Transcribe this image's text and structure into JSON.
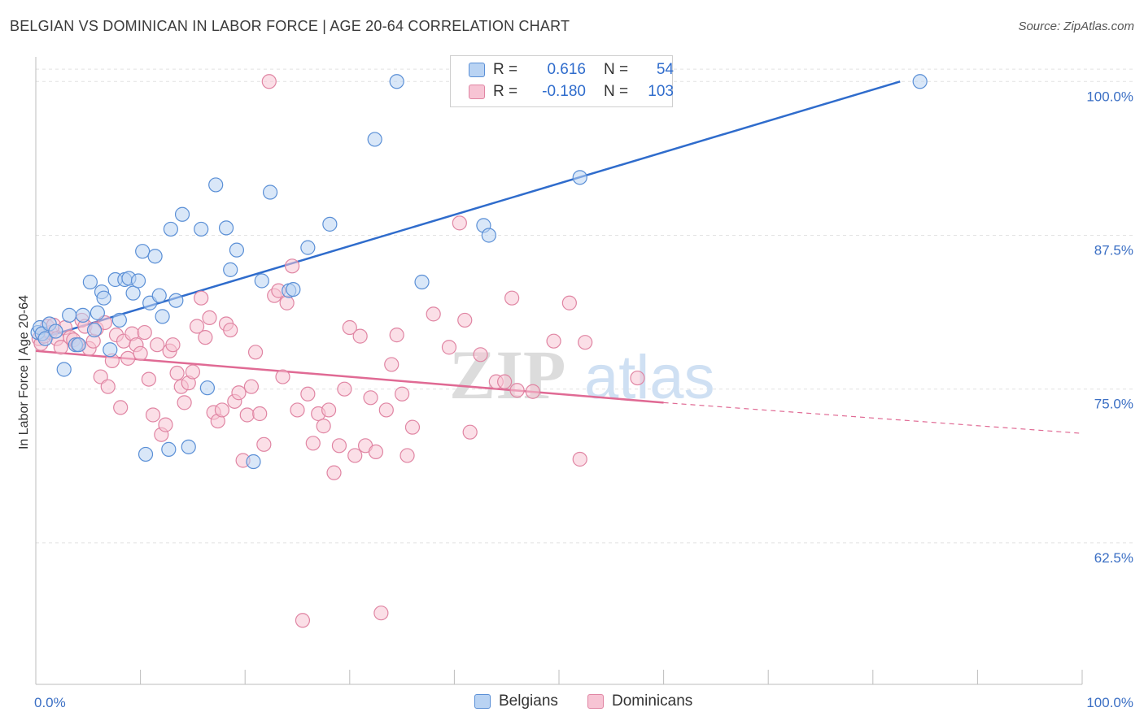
{
  "title": "BELGIAN VS DOMINICAN IN LABOR FORCE | AGE 20-64 CORRELATION CHART",
  "source": "Source: ZipAtlas.com",
  "legend": {
    "row1": {
      "r_label": "R =",
      "r_value": "0.616",
      "n_label": "N =",
      "n_value": "54"
    },
    "row2": {
      "r_label": "R =",
      "r_value": "-0.180",
      "n_label": "N =",
      "n_value": "103"
    }
  },
  "bottom_legend": {
    "belgians": "Belgians",
    "dominicans": "Dominicans"
  },
  "watermark": {
    "zip": "ZIP",
    "atlas": "atlas"
  },
  "colors": {
    "belgian": "#5a8fd6",
    "belgian_fill": "#b9d3f3",
    "dominican": "#e085a3",
    "dominican_fill": "#f7c4d4",
    "blue_line": "#2f6ccc",
    "pink_line": "#e06a94"
  },
  "chart_data": {
    "type": "scatter",
    "title": "BELGIAN VS DOMINICAN IN LABOR FORCE | AGE 20-64 CORRELATION CHART",
    "xlabel": "",
    "ylabel": "In Labor Force | Age 20-64",
    "xlim": [
      0,
      100
    ],
    "ylim": [
      51,
      102
    ],
    "x_tick_labels": [
      "0.0%",
      "100.0%"
    ],
    "y_ticks": [
      62.5,
      75.0,
      87.5,
      100.0
    ],
    "y_tick_labels": [
      "62.5%",
      "75.0%",
      "87.5%",
      "100.0%"
    ],
    "series": [
      {
        "name": "Belgians",
        "r": 0.616,
        "n": 54,
        "trend": {
          "x0": 0,
          "y0": 79.0,
          "x1": 82.6,
          "y1": 100.0
        },
        "points": [
          [
            0.2,
            79.6
          ],
          [
            0.4,
            80.0
          ],
          [
            0.6,
            79.5
          ],
          [
            0.9,
            79.1
          ],
          [
            1.3,
            80.3
          ],
          [
            1.9,
            79.7
          ],
          [
            2.7,
            76.6
          ],
          [
            3.2,
            81.0
          ],
          [
            3.8,
            78.6
          ],
          [
            4.1,
            78.6
          ],
          [
            4.5,
            81.0
          ],
          [
            5.2,
            83.7
          ],
          [
            5.6,
            79.8
          ],
          [
            5.9,
            81.2
          ],
          [
            6.3,
            82.9
          ],
          [
            6.5,
            82.4
          ],
          [
            7.1,
            78.2
          ],
          [
            7.6,
            83.9
          ],
          [
            8.0,
            80.6
          ],
          [
            8.5,
            83.9
          ],
          [
            8.9,
            84.0
          ],
          [
            9.3,
            82.8
          ],
          [
            9.8,
            83.8
          ],
          [
            10.2,
            86.2
          ],
          [
            10.9,
            82.0
          ],
          [
            11.4,
            85.8
          ],
          [
            11.8,
            82.6
          ],
          [
            12.1,
            80.9
          ],
          [
            12.9,
            88.0
          ],
          [
            13.4,
            82.2
          ],
          [
            14.0,
            89.2
          ],
          [
            14.6,
            70.3
          ],
          [
            15.8,
            88.0
          ],
          [
            16.4,
            75.1
          ],
          [
            17.2,
            91.6
          ],
          [
            18.2,
            88.1
          ],
          [
            18.6,
            84.7
          ],
          [
            19.2,
            86.3
          ],
          [
            20.8,
            69.1
          ],
          [
            21.6,
            83.8
          ],
          [
            22.4,
            91.0
          ],
          [
            24.2,
            83.0
          ],
          [
            24.6,
            83.1
          ],
          [
            26.0,
            86.5
          ],
          [
            28.1,
            88.4
          ],
          [
            32.4,
            95.3
          ],
          [
            34.5,
            100.0
          ],
          [
            36.9,
            83.7
          ],
          [
            42.8,
            88.3
          ],
          [
            43.3,
            87.5
          ],
          [
            52.0,
            92.2
          ],
          [
            84.5,
            100.0
          ],
          [
            10.5,
            69.7
          ],
          [
            12.7,
            70.1
          ]
        ]
      },
      {
        "name": "Dominicans",
        "r": -0.18,
        "n": 103,
        "trend": {
          "x0": 0,
          "y0": 78.1,
          "x1": 60.0,
          "y1": 73.9,
          "dashed_to": {
            "x": 100,
            "y": 71.4
          }
        },
        "points": [
          [
            0.3,
            79.1
          ],
          [
            0.5,
            78.7
          ],
          [
            0.8,
            79.3
          ],
          [
            1.1,
            80.1
          ],
          [
            1.4,
            79.6
          ],
          [
            1.7,
            80.2
          ],
          [
            2.0,
            79.1
          ],
          [
            2.4,
            78.4
          ],
          [
            2.8,
            80.0
          ],
          [
            3.3,
            79.2
          ],
          [
            3.6,
            79.0
          ],
          [
            4.0,
            78.6
          ],
          [
            4.4,
            80.6
          ],
          [
            4.7,
            80.1
          ],
          [
            5.1,
            78.3
          ],
          [
            5.5,
            78.9
          ],
          [
            5.8,
            79.9
          ],
          [
            6.2,
            76.0
          ],
          [
            6.6,
            80.4
          ],
          [
            6.9,
            75.2
          ],
          [
            7.3,
            77.3
          ],
          [
            7.7,
            79.4
          ],
          [
            8.1,
            73.5
          ],
          [
            8.4,
            78.9
          ],
          [
            8.8,
            77.5
          ],
          [
            9.2,
            79.5
          ],
          [
            9.6,
            78.6
          ],
          [
            10.0,
            77.9
          ],
          [
            10.4,
            79.6
          ],
          [
            10.8,
            75.8
          ],
          [
            11.2,
            72.9
          ],
          [
            11.6,
            78.6
          ],
          [
            12.0,
            71.3
          ],
          [
            12.4,
            72.1
          ],
          [
            12.8,
            78.1
          ],
          [
            13.1,
            78.6
          ],
          [
            13.5,
            76.3
          ],
          [
            13.9,
            75.2
          ],
          [
            14.2,
            73.9
          ],
          [
            14.6,
            75.5
          ],
          [
            15.0,
            76.4
          ],
          [
            15.4,
            80.1
          ],
          [
            15.8,
            82.4
          ],
          [
            16.2,
            79.2
          ],
          [
            16.6,
            80.8
          ],
          [
            17.0,
            73.1
          ],
          [
            17.4,
            72.4
          ],
          [
            17.8,
            73.3
          ],
          [
            18.2,
            80.3
          ],
          [
            18.6,
            79.8
          ],
          [
            19.0,
            74.0
          ],
          [
            19.4,
            74.7
          ],
          [
            19.8,
            69.2
          ],
          [
            20.2,
            72.9
          ],
          [
            20.6,
            75.2
          ],
          [
            21.0,
            78.0
          ],
          [
            21.4,
            73.0
          ],
          [
            21.8,
            70.5
          ],
          [
            22.3,
            100.0
          ],
          [
            22.8,
            82.6
          ],
          [
            23.2,
            83.0
          ],
          [
            23.6,
            76.0
          ],
          [
            24.0,
            82.0
          ],
          [
            24.5,
            85.0
          ],
          [
            25.0,
            73.3
          ],
          [
            25.5,
            56.2
          ],
          [
            26.0,
            74.6
          ],
          [
            26.5,
            70.6
          ],
          [
            27.0,
            73.0
          ],
          [
            27.5,
            72.0
          ],
          [
            28.0,
            73.3
          ],
          [
            28.5,
            68.2
          ],
          [
            29.0,
            70.4
          ],
          [
            29.5,
            75.0
          ],
          [
            30.0,
            80.0
          ],
          [
            30.5,
            69.6
          ],
          [
            31.0,
            79.3
          ],
          [
            31.5,
            70.4
          ],
          [
            32.0,
            74.3
          ],
          [
            32.5,
            69.9
          ],
          [
            33.0,
            56.8
          ],
          [
            33.5,
            73.3
          ],
          [
            34.0,
            77.0
          ],
          [
            34.5,
            79.4
          ],
          [
            35.0,
            74.6
          ],
          [
            35.5,
            69.6
          ],
          [
            36.0,
            71.9
          ],
          [
            38.0,
            81.1
          ],
          [
            39.5,
            78.4
          ],
          [
            40.5,
            88.5
          ],
          [
            41.0,
            80.6
          ],
          [
            41.5,
            71.5
          ],
          [
            42.5,
            77.8
          ],
          [
            44.0,
            75.6
          ],
          [
            44.8,
            75.6
          ],
          [
            45.5,
            82.4
          ],
          [
            46.0,
            74.9
          ],
          [
            47.5,
            74.8
          ],
          [
            49.5,
            78.9
          ],
          [
            51.0,
            82.0
          ],
          [
            52.0,
            69.3
          ],
          [
            52.5,
            78.8
          ],
          [
            57.5,
            75.9
          ]
        ]
      }
    ]
  }
}
